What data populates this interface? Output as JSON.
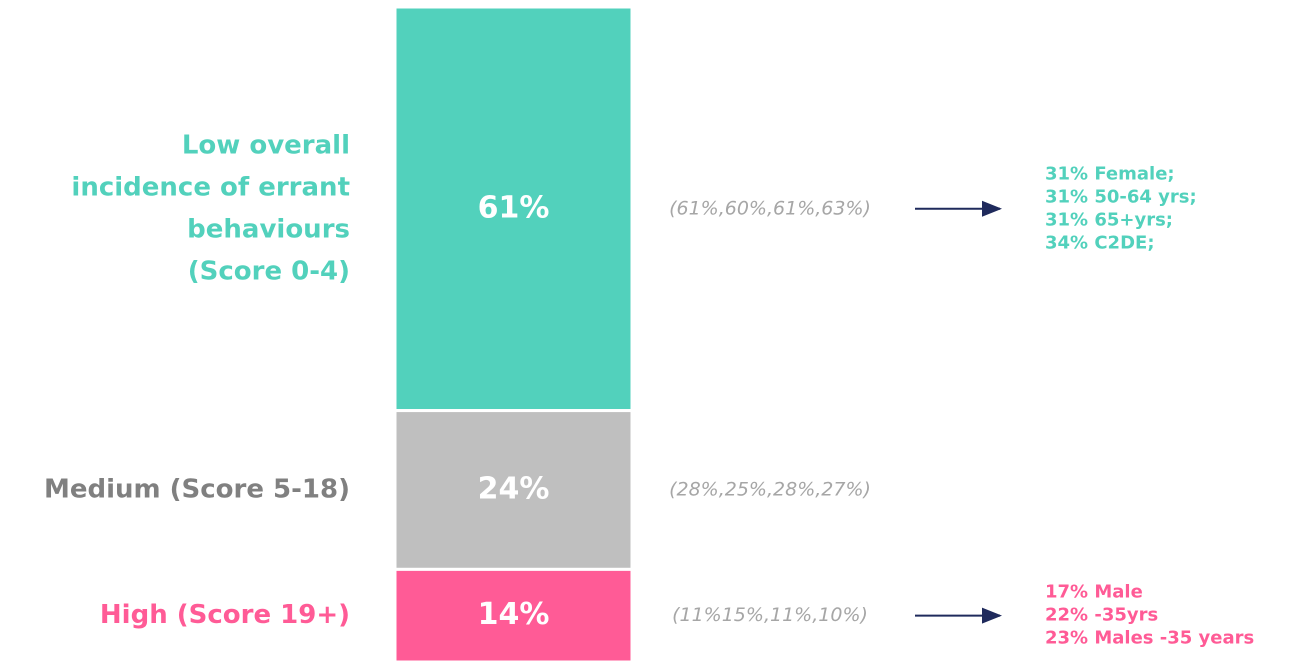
{
  "chart_data": {
    "type": "stacked_bar",
    "segments": [
      {
        "label": [
          "Low overall",
          "incidence of errant",
          "behaviours",
          "(Score 0-4)"
        ],
        "value": 61,
        "value_label": "61%",
        "color": "#52d1bc",
        "label_color": "#52d1bc",
        "note": "(61%,60%,61%,63%)",
        "details": [
          "31% Female;",
          "31% 50-64 yrs;",
          "31% 65+yrs;",
          "34% C2DE;"
        ]
      },
      {
        "label": [
          "Medium (Score 5-18)"
        ],
        "value": 24,
        "value_label": "24%",
        "color": "#bfbfbf",
        "label_color": "#808080",
        "note": "(28%,25%,28%,27%)",
        "details": []
      },
      {
        "label": [
          "High (Score 19+)"
        ],
        "value": 14,
        "value_label": "14%",
        "color": "#ff5b96",
        "label_color": "#ff5b96",
        "note": "(11%15%,11%,10%)",
        "details": [
          "17% Male",
          "22% -35yrs",
          "23% Males -35 years"
        ]
      }
    ]
  }
}
